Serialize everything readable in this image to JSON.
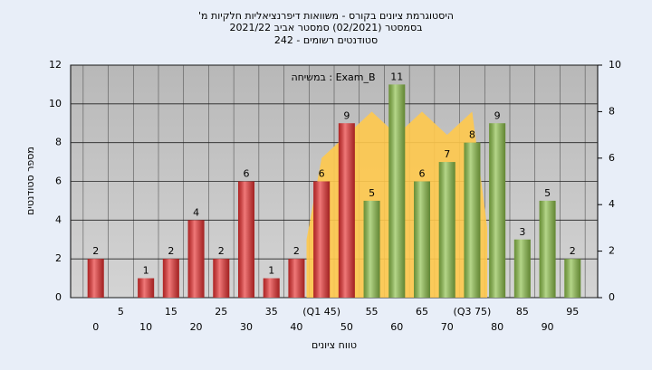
{
  "chart_data": {
    "type": "bar",
    "title": [
      "היסטוגרמת ציונים בקורס - משוואות דיפרנציאליות חלקיות מ'",
      "בסמסטר (02/2021) סמסטר אביב 2021/22",
      "סטודנטים רשומים - 242"
    ],
    "annotation": "Exam_B : במשיחה",
    "x_label": "טווח ציונים",
    "y_label": "מספר סטודנטים",
    "categories": [
      "0",
      "5",
      "10",
      "15",
      "20",
      "25",
      "30",
      "35",
      "40",
      "(Q1 45)",
      "50",
      "55",
      "60",
      "65",
      "70",
      "(Q3 75)",
      "80",
      "85",
      "90",
      "95"
    ],
    "values": [
      2,
      0,
      1,
      2,
      4,
      2,
      6,
      1,
      2,
      6,
      9,
      5,
      11,
      6,
      7,
      8,
      9,
      3,
      5,
      2
    ],
    "colors": [
      "#e83030",
      "#e83030",
      "#e83030",
      "#e83030",
      "#e83030",
      "#e83030",
      "#e83030",
      "#e83030",
      "#e83030",
      "#e83030",
      "#e83030",
      "#8dc04a",
      "#8dc04a",
      "#8dc04a",
      "#8dc04a",
      "#8dc04a",
      "#8dc04a",
      "#8dc04a",
      "#8dc04a",
      "#8dc04a"
    ],
    "ylim": [
      0,
      12
    ],
    "yticks": [
      0,
      2,
      4,
      6,
      8,
      10,
      12
    ],
    "y2lim": [
      0,
      10
    ],
    "y2ticks": [
      0,
      2,
      4,
      6,
      8,
      10
    ],
    "area": {
      "axis": "y2",
      "color": "#ffc94d",
      "x": [
        42,
        45,
        55,
        60,
        65,
        70,
        75,
        78
      ],
      "values": [
        2.5,
        6,
        8,
        7,
        8,
        7,
        8,
        3
      ]
    },
    "grid": true
  }
}
